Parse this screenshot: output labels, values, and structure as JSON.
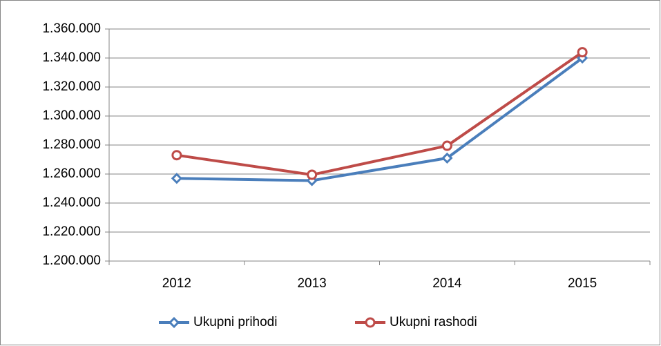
{
  "chart_data": {
    "type": "line",
    "categories": [
      "2012",
      "2013",
      "2014",
      "2015"
    ],
    "series": [
      {
        "name": "Ukupni prihodi",
        "color": "#4a7ebb",
        "marker": "diamond",
        "values": [
          1257000,
          1255500,
          1271000,
          1340000
        ]
      },
      {
        "name": "Ukupni rashodi",
        "color": "#be4b48",
        "marker": "circle",
        "values": [
          1273000,
          1259500,
          1279500,
          1344000
        ]
      }
    ],
    "ylim": [
      1200000,
      1360000
    ],
    "yticks": [
      {
        "value": 1200000,
        "label": "1.200.000"
      },
      {
        "value": 1220000,
        "label": "1.220.000"
      },
      {
        "value": 1240000,
        "label": "1.240.000"
      },
      {
        "value": 1260000,
        "label": "1.260.000"
      },
      {
        "value": 1280000,
        "label": "1.280.000"
      },
      {
        "value": 1300000,
        "label": "1.300.000"
      },
      {
        "value": 1320000,
        "label": "1.320.000"
      },
      {
        "value": 1340000,
        "label": "1.340.000"
      },
      {
        "value": 1360000,
        "label": "1.360.000"
      }
    ],
    "grid": true,
    "legend": "bottom"
  }
}
